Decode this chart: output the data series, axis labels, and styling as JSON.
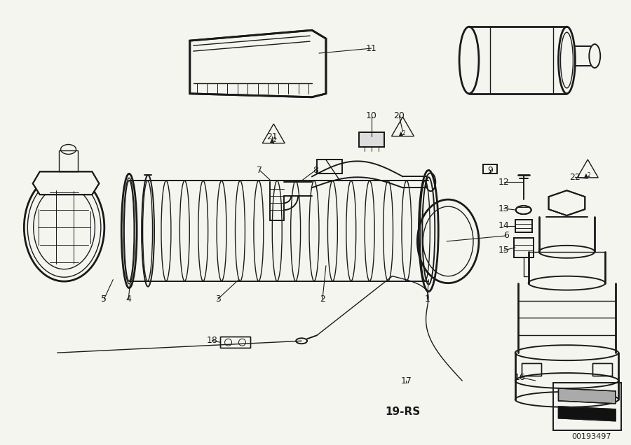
{
  "bg_color": "#f5f5f0",
  "diagram_color": "#1a1a1a",
  "fig_width": 9.0,
  "fig_height": 6.36,
  "watermark": "00193497",
  "ref_code": "19-RS"
}
